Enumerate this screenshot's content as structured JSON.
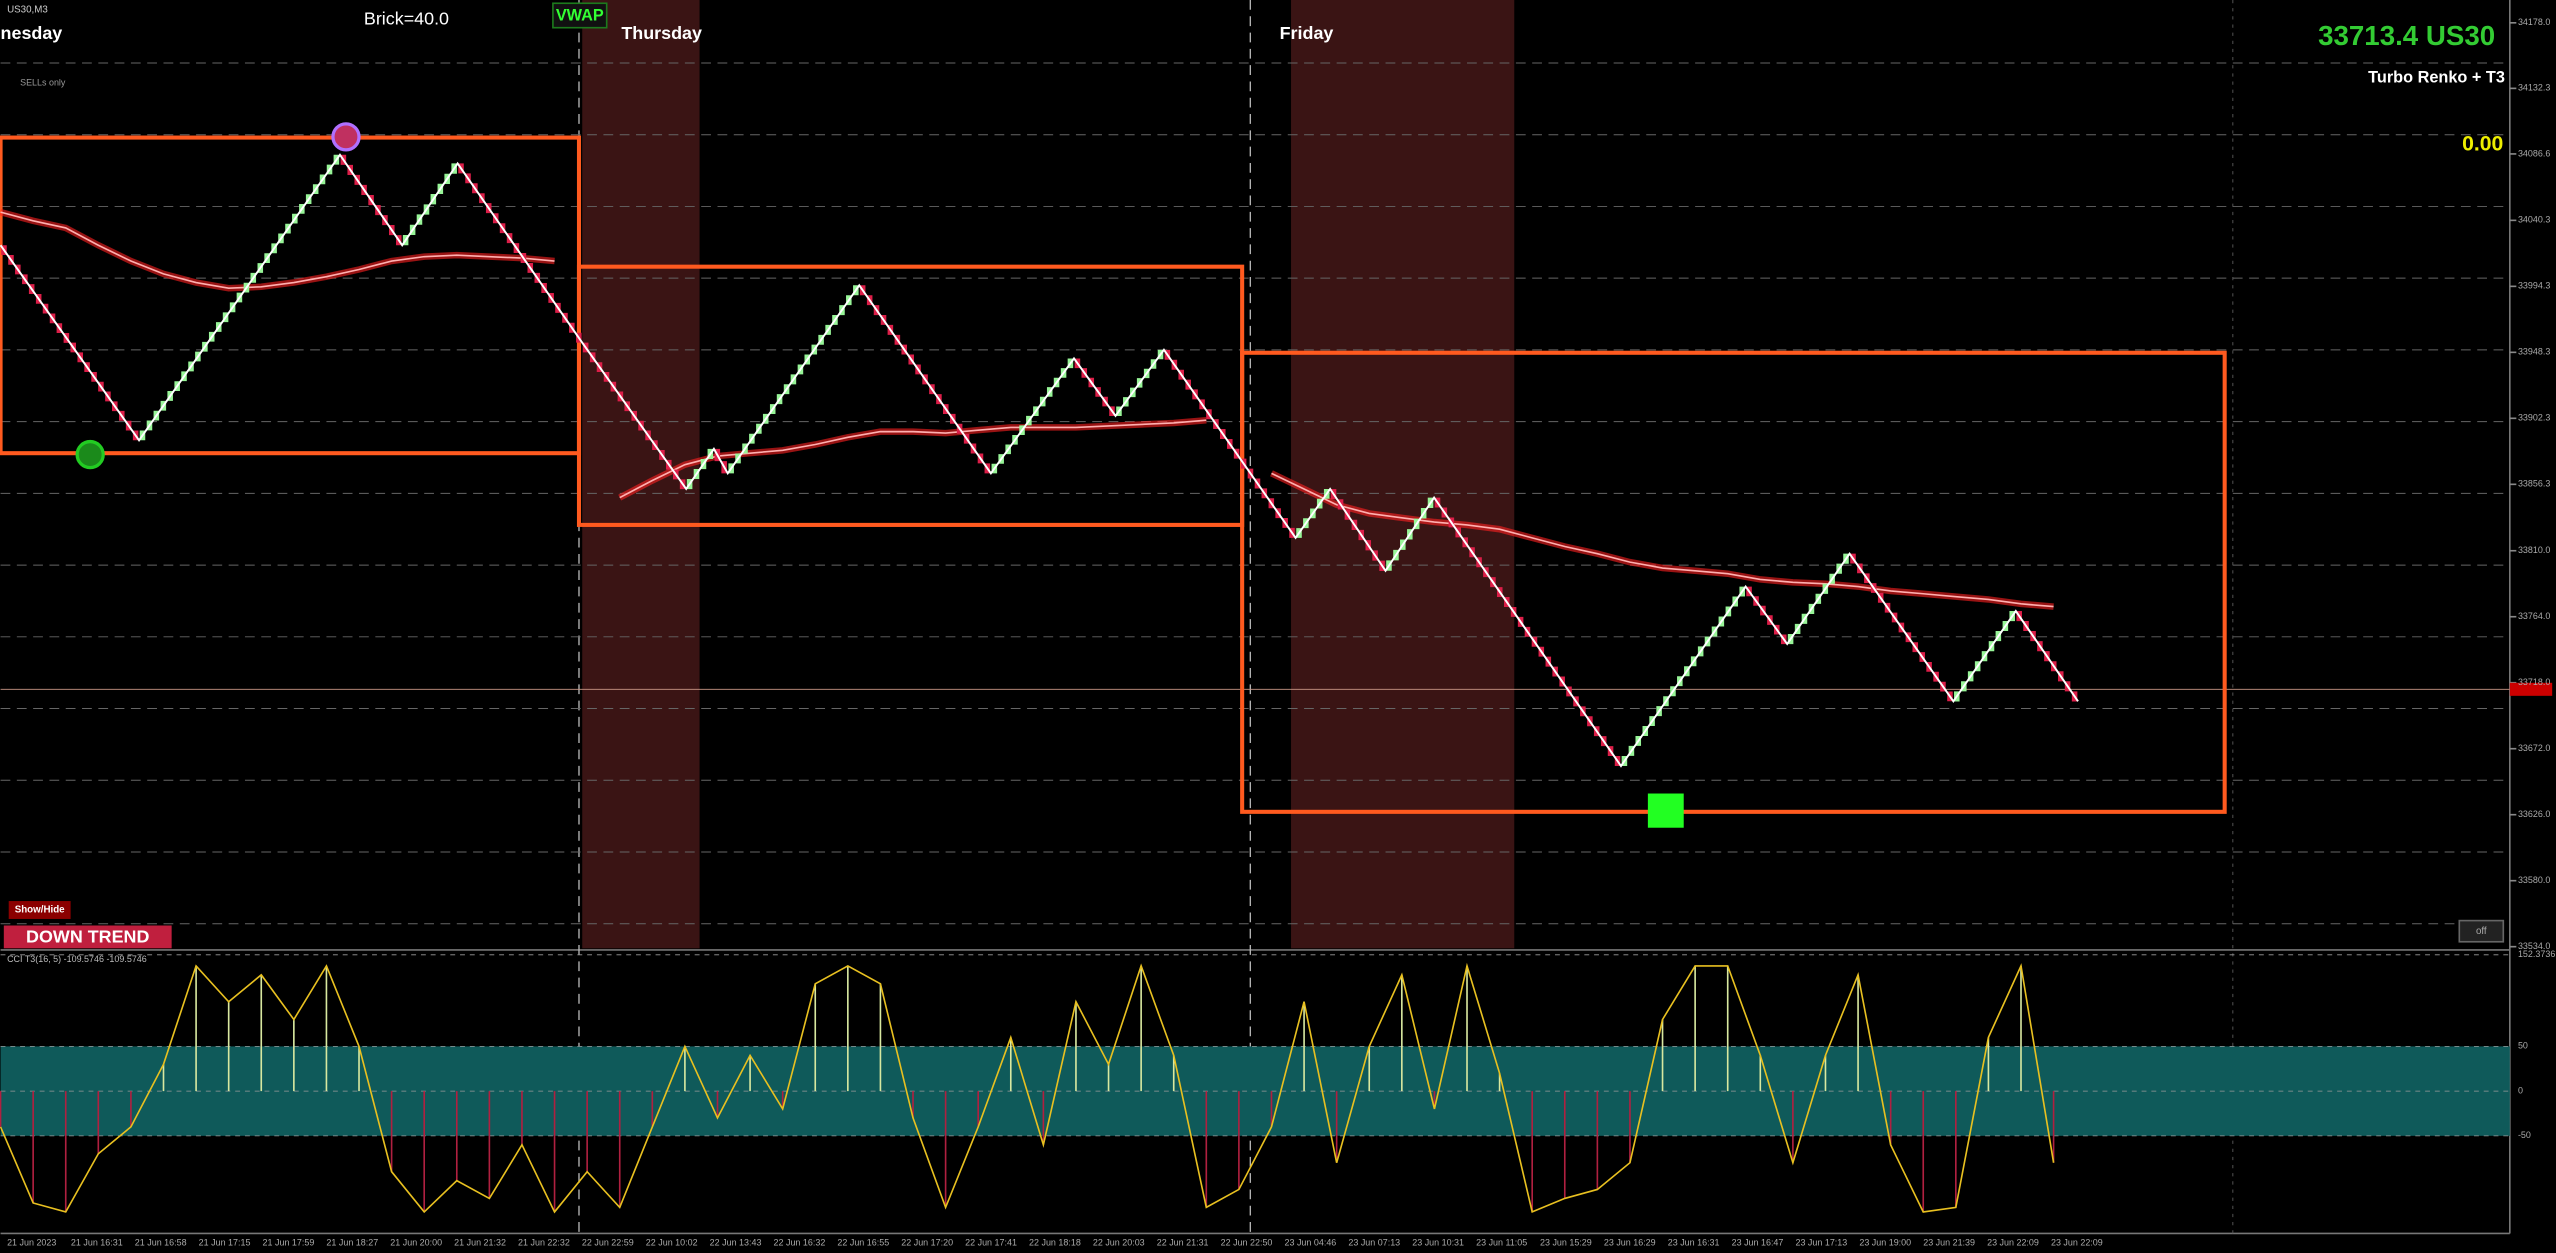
{
  "header": {
    "symbol": "US30,M3",
    "brick": "Brick=40.0",
    "vwap_button": "VWAP",
    "days": [
      "nesday",
      "Thursday",
      "Friday"
    ],
    "price_title": "33713.4 US30",
    "indicator_name": "Turbo Renko + T3",
    "pnl": "0.00",
    "mode": "SELLs only",
    "show_hide": "Show/Hide",
    "trend": "DOWN TREND",
    "off_button": "off"
  },
  "price_panel": {
    "ylim": [
      33534,
      34178
    ],
    "yticks": [
      {
        "value": 34178,
        "label": "34178.0"
      },
      34132.3,
      34086.6,
      34040.3,
      33994.3,
      33948.3,
      33902.3,
      33856.3,
      {
        "value": 33810,
        "label": "33810.0"
      },
      {
        "value": 33764,
        "label": "33764.0"
      },
      {
        "value": 33718,
        "label": "33718.0"
      },
      {
        "value": 33672,
        "label": "33672.0"
      },
      {
        "value": 33626,
        "label": "33626.0"
      },
      {
        "value": 33580,
        "label": "33580.0"
      },
      {
        "value": 33534,
        "label": "33534.0"
      }
    ],
    "levels": [
      34150,
      34100,
      34050,
      34000,
      33950,
      33900,
      33850,
      33800,
      33750,
      33700,
      33650,
      33600,
      33550
    ],
    "bid": 33713.4,
    "renko_closes": [
      34023,
      33887,
      34086,
      34023,
      34080,
      33955,
      33853,
      33881,
      33864,
      33995,
      33864,
      33944,
      33904,
      33950,
      33819,
      33853,
      33796,
      33847,
      33660,
      33785,
      33745,
      33808,
      33705,
      33768,
      33705
    ],
    "vwap": [
      34046,
      34040,
      34035,
      34023,
      34012,
      34003,
      33997,
      33993,
      33994,
      33997,
      34001,
      34006,
      34012,
      34015,
      34016,
      34015,
      34014,
      34012,
      null,
      33847,
      33859,
      33870,
      33876,
      33878,
      33880,
      33884,
      33889,
      33893,
      33893,
      33892,
      33894,
      33896,
      33896,
      33896,
      33897,
      33898,
      33899,
      33901,
      null,
      33864,
      33853,
      33842,
      33836,
      33833,
      33830,
      33828,
      33825,
      33819,
      33813,
      33808,
      33802,
      33798,
      33796,
      33794,
      33790,
      33788,
      33787,
      33785,
      33782,
      33780,
      33778,
      33776,
      33773,
      33771
    ],
    "boxes": [
      {
        "high": 34098,
        "low": 33878
      },
      {
        "high": 34008,
        "low": 33828
      },
      {
        "high": 33948,
        "low": 33628
      }
    ]
  },
  "cci_panel": {
    "title": "CCI T3(16, 5) -109.5746 -109.5746",
    "ylim": [
      -150,
      152.3736
    ],
    "yticks": [
      152.3736,
      50,
      0,
      -50
    ],
    "band": [
      -50,
      50
    ],
    "values": [
      -40,
      -125,
      -135,
      -70,
      -40,
      30,
      140,
      100,
      130,
      80,
      140,
      50,
      -90,
      -135,
      -100,
      -120,
      -60,
      -135,
      -90,
      -130,
      -40,
      50,
      -30,
      40,
      -20,
      120,
      140,
      120,
      -30,
      -130,
      -40,
      60,
      -60,
      100,
      30,
      140,
      40,
      -130,
      -110,
      -40,
      100,
      -80,
      50,
      130,
      -20,
      140,
      20,
      -135,
      -120,
      -110,
      -80,
      80,
      140,
      140,
      40,
      -80,
      40,
      130,
      -60,
      -135,
      -130,
      60,
      140,
      -80
    ]
  },
  "time_axis": [
    "21 Jun 2023",
    "21 Jun 16:31",
    "21 Jun 16:58",
    "21 Jun 17:15",
    "21 Jun 17:59",
    "21 Jun 18:27",
    "21 Jun 20:00",
    "21 Jun 21:32",
    "21 Jun 22:32",
    "22 Jun 22:59",
    "22 Jun 10:02",
    "22 Jun 13:43",
    "22 Jun 16:32",
    "22 Jun 16:55",
    "22 Jun 17:20",
    "22 Jun 17:41",
    "22 Jun 18:18",
    "22 Jun 20:03",
    "22 Jun 21:31",
    "22 Jun 22:50",
    "23 Jun 04:46",
    "23 Jun 07:13",
    "23 Jun 10:31",
    "23 Jun 11:05",
    "23 Jun 15:29",
    "23 Jun 16:29",
    "23 Jun 16:31",
    "23 Jun 16:47",
    "23 Jun 17:13",
    "23 Jun 19:00",
    "23 Jun 21:39",
    "23 Jun 22:09",
    "23 Jun 22:09"
  ]
}
